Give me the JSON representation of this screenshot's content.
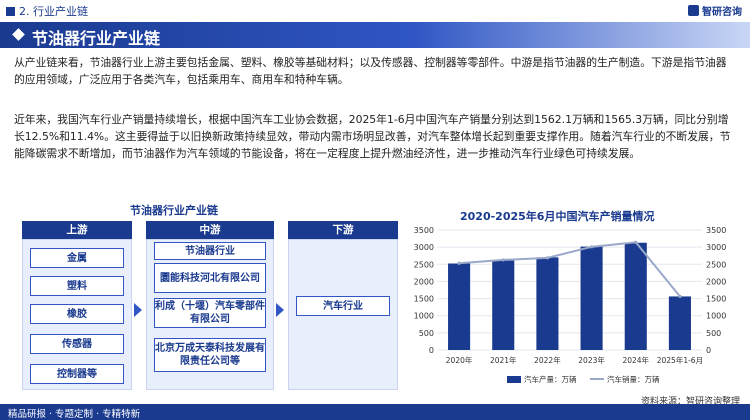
{
  "header": {
    "section": "2. 行业产业链",
    "brand": "智研咨询"
  },
  "title": "节油器行业产业链",
  "paragraphs": [
    "从产业链来看，节油器行业上游主要包括金属、塑料、橡胶等基础材料；以及传感器、控制器等零部件。中游是指节油器的生产制造。下游是指节油器的应用领域，广泛应用于各类汽车，包括乘用车、商用车和特种车辆。",
    "近年来，我国汽车行业产销量持续增长，根据中国汽车工业协会数据，2025年1-6月中国汽车产销量分别达到1562.1万辆和1565.3万辆，同比分别增长12.5%和11.4%。这主要得益于以旧换新政策持续显效，带动内需市场明显改善，对汽车整体增长起到重要支撑作用。随着汽车行业的不断发展，节能降碳需求不断增加，而节油器作为汽车领域的节能设备，将在一定程度上提升燃油经济性，进一步推动汽车行业绿色可持续发展。"
  ],
  "chain": {
    "title": "节油器行业产业链",
    "upstream": {
      "label": "上游",
      "items": [
        "金属",
        "塑料",
        "橡胶",
        "传感器",
        "控制器等"
      ]
    },
    "midstream": {
      "label": "中游",
      "items": [
        "节油器行业",
        "圜能科技河北有限公司",
        "利成（十堰）汽车零部件有限公司",
        "北京万成天泰科技发展有限责任公司等"
      ]
    },
    "downstream": {
      "label": "下游",
      "items": [
        "汽车行业"
      ]
    }
  },
  "chart_title": "2020-2025年6月中国汽车产销量情况",
  "chart_data": {
    "type": "bar",
    "title": "2020-2025年6月中国汽车产销量情况",
    "categories": [
      "2020年",
      "2021年",
      "2022年",
      "2023年",
      "2024年",
      "2025年1-6月"
    ],
    "series": [
      {
        "name": "汽车产量：万辆",
        "kind": "bar",
        "values": [
          2522.5,
          2608.2,
          2702.1,
          3016.1,
          3128.2,
          1562.1
        ],
        "color": "#1a3a8f"
      },
      {
        "name": "汽车销量：万辆",
        "kind": "line",
        "values": [
          2531.1,
          2627.5,
          2686.4,
          3009.4,
          3143.6,
          1565.3
        ],
        "color": "#9aa9c9"
      }
    ],
    "yticks": [
      0,
      500,
      1000,
      1500,
      2000,
      2500,
      3000,
      3500
    ],
    "ylim": [
      0,
      3500
    ],
    "legend": "bottom"
  },
  "legend": {
    "bar": "汽车产量：万辆",
    "line": "汽车销量：万辆"
  },
  "footer": {
    "tagline": "精品研报 · 专题定制 · 专精特新"
  },
  "source": "资料来源：智研咨询整理"
}
